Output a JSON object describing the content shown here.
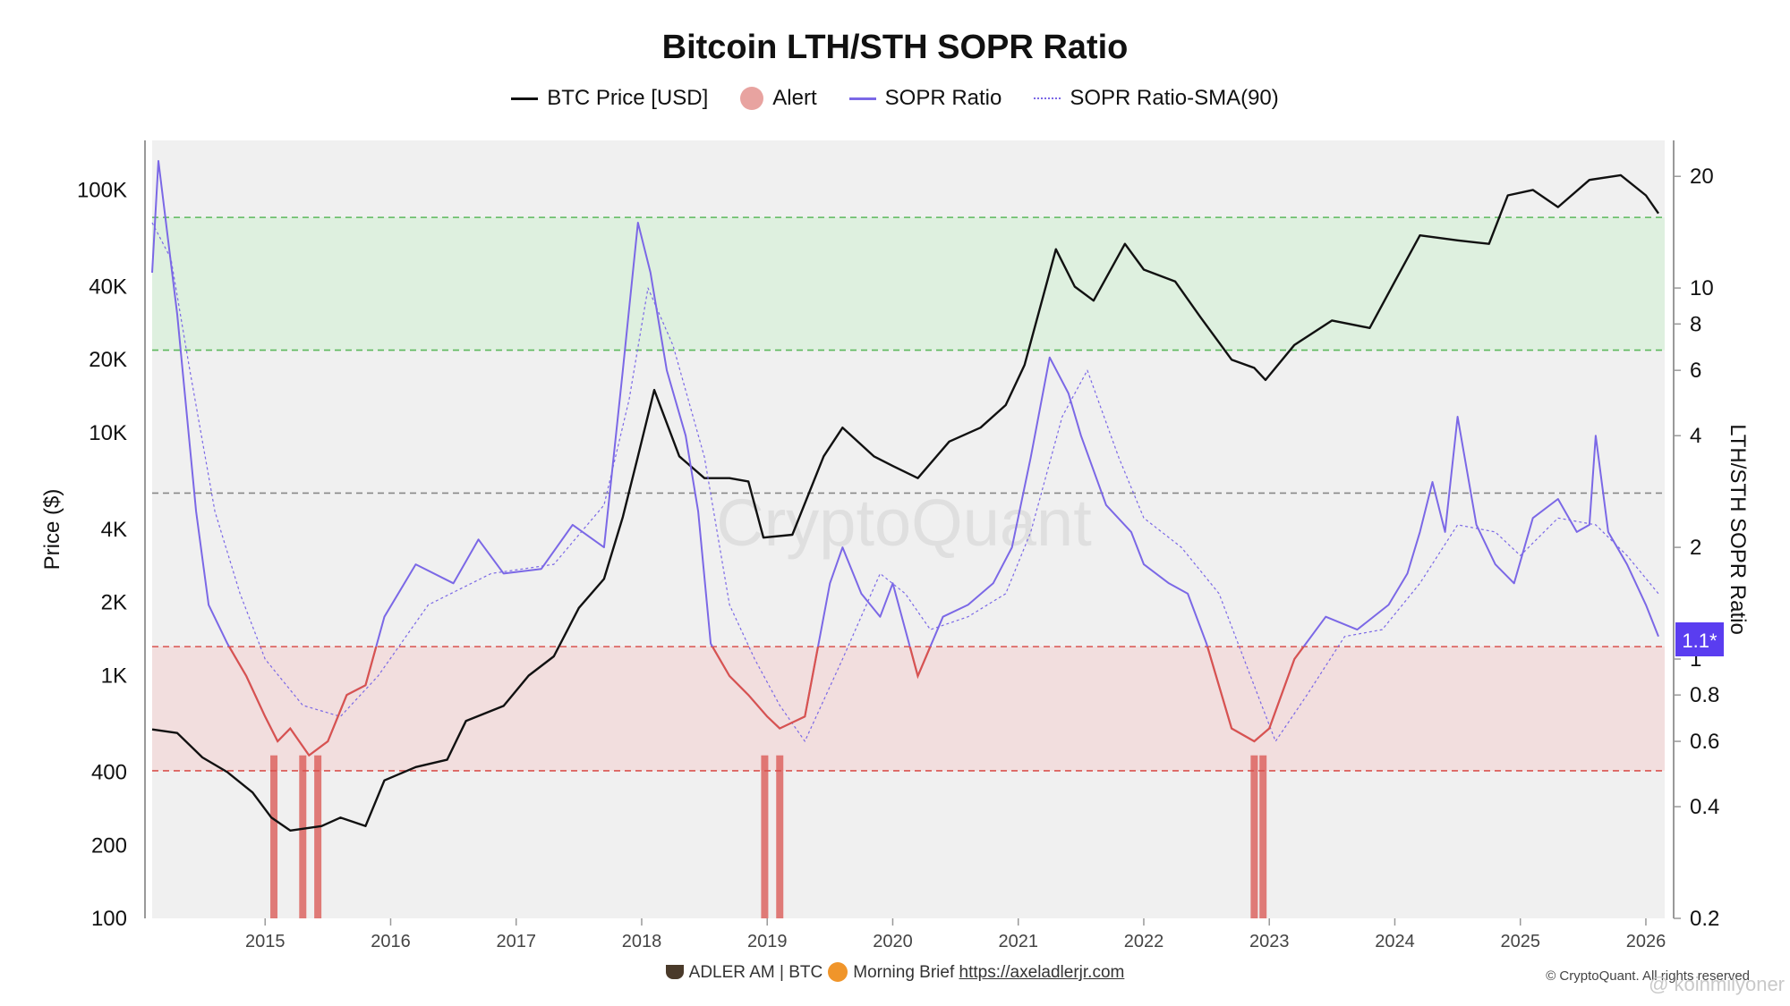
{
  "chart_data": {
    "type": "line",
    "title": "Bitcoin LTH/STH SOPR Ratio",
    "legend": [
      {
        "name": "BTC Price [USD]",
        "color": "#111111",
        "style": "line"
      },
      {
        "name": "Alert",
        "color": "#e8a3a0",
        "style": "dot"
      },
      {
        "name": "SOPR Ratio",
        "color": "#7b68e6",
        "style": "line"
      },
      {
        "name": "SOPR Ratio-SMA(90)",
        "color": "#7b68e6",
        "style": "dotted"
      }
    ],
    "legend_placement": "top-center",
    "ylabel": "Price ($)",
    "y2label": "LTH/STH SOPR Ratio",
    "y_scale": "log",
    "y2_scale": "log",
    "ylim": [
      100,
      160000
    ],
    "y2lim": [
      0.2,
      25
    ],
    "xlim": [
      2014.1,
      2026.15
    ],
    "x_ticks": [
      "2015",
      "2016",
      "2017",
      "2018",
      "2019",
      "2020",
      "2021",
      "2022",
      "2023",
      "2024",
      "2025",
      "2026"
    ],
    "y_ticks": [
      "100",
      "200",
      "400",
      "1K",
      "2K",
      "4K",
      "10K",
      "20K",
      "40K",
      "100K"
    ],
    "y2_ticks": [
      "0.2",
      "0.4",
      "0.6",
      "0.8",
      "1",
      "2",
      "4",
      "6",
      "8",
      "10",
      "20"
    ],
    "current_value_label": "1.1*",
    "bands": [
      {
        "name": "upper",
        "y2_from": 6.8,
        "y2_to": 15.5,
        "color": "#dcefdd"
      },
      {
        "name": "lower",
        "y2_from": 0.5,
        "y2_to": 1.08,
        "color": "#f2dcdc"
      }
    ],
    "reference_lines": [
      {
        "y2": 15.5,
        "color": "#5cb85c"
      },
      {
        "y2": 6.8,
        "color": "#5cb85c"
      },
      {
        "y2": 2.8,
        "color": "#888888"
      },
      {
        "y2": 1.08,
        "color": "#d9534f"
      },
      {
        "y2": 0.5,
        "color": "#d9534f"
      }
    ],
    "alerts": [
      {
        "x": 2015.07
      },
      {
        "x": 2015.3
      },
      {
        "x": 2015.42
      },
      {
        "x": 2018.98
      },
      {
        "x": 2019.1
      },
      {
        "x": 2022.88
      },
      {
        "x": 2022.95
      }
    ],
    "series": [
      {
        "name": "BTC Price [USD]",
        "axis": "left",
        "color": "#111111",
        "x": [
          2014.1,
          2014.3,
          2014.5,
          2014.7,
          2014.9,
          2015.05,
          2015.2,
          2015.45,
          2015.6,
          2015.8,
          2015.95,
          2016.2,
          2016.45,
          2016.6,
          2016.9,
          2017.1,
          2017.3,
          2017.5,
          2017.7,
          2017.85,
          2017.97,
          2018.1,
          2018.3,
          2018.5,
          2018.7,
          2018.85,
          2018.97,
          2019.2,
          2019.45,
          2019.6,
          2019.85,
          2020.0,
          2020.2,
          2020.45,
          2020.7,
          2020.9,
          2021.05,
          2021.3,
          2021.45,
          2021.6,
          2021.85,
          2022.0,
          2022.25,
          2022.45,
          2022.7,
          2022.88,
          2022.97,
          2023.2,
          2023.5,
          2023.8,
          2024.0,
          2024.2,
          2024.5,
          2024.75,
          2024.9,
          2025.1,
          2025.3,
          2025.55,
          2025.8,
          2026.0,
          2026.1
        ],
        "values": [
          600,
          580,
          460,
          400,
          330,
          260,
          230,
          240,
          260,
          240,
          370,
          420,
          450,
          650,
          750,
          1000,
          1200,
          1900,
          2500,
          4500,
          8000,
          15000,
          8000,
          6500,
          6500,
          6300,
          3700,
          3800,
          8000,
          10500,
          8000,
          7300,
          6500,
          9200,
          10500,
          13000,
          19000,
          57000,
          40000,
          35000,
          60000,
          47000,
          42000,
          30000,
          20000,
          18500,
          16500,
          23000,
          29000,
          27000,
          42000,
          65000,
          62000,
          60000,
          95000,
          100000,
          85000,
          110000,
          115000,
          95000,
          80000
        ]
      },
      {
        "name": "SOPR Ratio",
        "axis": "right",
        "color": "#7b68e6",
        "x": [
          2014.1,
          2014.15,
          2014.3,
          2014.45,
          2014.55,
          2014.7,
          2014.85,
          2015.0,
          2015.1,
          2015.2,
          2015.35,
          2015.5,
          2015.65,
          2015.8,
          2015.95,
          2016.2,
          2016.5,
          2016.7,
          2016.9,
          2017.2,
          2017.45,
          2017.7,
          2017.85,
          2017.97,
          2018.07,
          2018.2,
          2018.35,
          2018.45,
          2018.55,
          2018.7,
          2018.85,
          2019.0,
          2019.1,
          2019.3,
          2019.5,
          2019.6,
          2019.75,
          2019.9,
          2020.0,
          2020.2,
          2020.4,
          2020.6,
          2020.8,
          2020.95,
          2021.1,
          2021.25,
          2021.4,
          2021.5,
          2021.7,
          2021.9,
          2022.0,
          2022.2,
          2022.35,
          2022.5,
          2022.7,
          2022.88,
          2023.0,
          2023.2,
          2023.45,
          2023.7,
          2023.95,
          2024.1,
          2024.2,
          2024.3,
          2024.4,
          2024.5,
          2024.65,
          2024.8,
          2024.95,
          2025.1,
          2025.3,
          2025.45,
          2025.55,
          2025.6,
          2025.7,
          2025.85,
          2026.0,
          2026.1
        ],
        "values": [
          11,
          22,
          8.5,
          2.5,
          1.4,
          1.1,
          0.9,
          0.7,
          0.6,
          0.65,
          0.55,
          0.6,
          0.8,
          0.85,
          1.3,
          1.8,
          1.6,
          2.1,
          1.7,
          1.75,
          2.3,
          2.0,
          6.0,
          15,
          11,
          6.0,
          4.0,
          2.5,
          1.1,
          0.9,
          0.8,
          0.7,
          0.65,
          0.7,
          1.6,
          2.0,
          1.5,
          1.3,
          1.6,
          0.9,
          1.3,
          1.4,
          1.6,
          2.0,
          3.5,
          6.5,
          5.2,
          4.0,
          2.6,
          2.2,
          1.8,
          1.6,
          1.5,
          1.1,
          0.65,
          0.6,
          0.65,
          1.0,
          1.3,
          1.2,
          1.4,
          1.7,
          2.2,
          3.0,
          2.2,
          4.5,
          2.3,
          1.8,
          1.6,
          2.4,
          2.7,
          2.2,
          2.3,
          4.0,
          2.2,
          1.8,
          1.4,
          1.15
        ]
      },
      {
        "name": "SOPR Ratio-SMA(90)",
        "axis": "right",
        "color": "#7b68e6",
        "x": [
          2014.1,
          2014.25,
          2014.4,
          2014.6,
          2014.8,
          2015.0,
          2015.3,
          2015.6,
          2015.9,
          2016.3,
          2016.8,
          2017.3,
          2017.7,
          2017.9,
          2018.05,
          2018.25,
          2018.5,
          2018.7,
          2018.9,
          2019.1,
          2019.3,
          2019.6,
          2019.9,
          2020.1,
          2020.3,
          2020.6,
          2020.9,
          2021.1,
          2021.35,
          2021.55,
          2021.8,
          2022.0,
          2022.3,
          2022.6,
          2022.85,
          2023.05,
          2023.3,
          2023.6,
          2023.9,
          2024.2,
          2024.5,
          2024.8,
          2025.0,
          2025.3,
          2025.6,
          2025.85,
          2026.1
        ],
        "values": [
          15,
          12,
          6.0,
          2.5,
          1.5,
          1.0,
          0.75,
          0.7,
          0.9,
          1.4,
          1.7,
          1.8,
          2.6,
          5.0,
          10,
          7.0,
          3.5,
          1.4,
          1.0,
          0.75,
          0.6,
          1.0,
          1.7,
          1.5,
          1.2,
          1.3,
          1.5,
          2.2,
          4.5,
          6.0,
          3.5,
          2.4,
          2.0,
          1.5,
          0.9,
          0.6,
          0.8,
          1.15,
          1.2,
          1.6,
          2.3,
          2.2,
          1.9,
          2.4,
          2.3,
          1.9,
          1.5
        ]
      }
    ]
  },
  "footer": {
    "brand": "ADLER AM | BTC",
    "brief": "Morning Brief",
    "link": "https://axeladlerjr.com"
  },
  "copyright": "© CryptoQuant. All rights reserved",
  "watermark": "CryptoQuant",
  "watermark_user": "@ koinmilyoner"
}
